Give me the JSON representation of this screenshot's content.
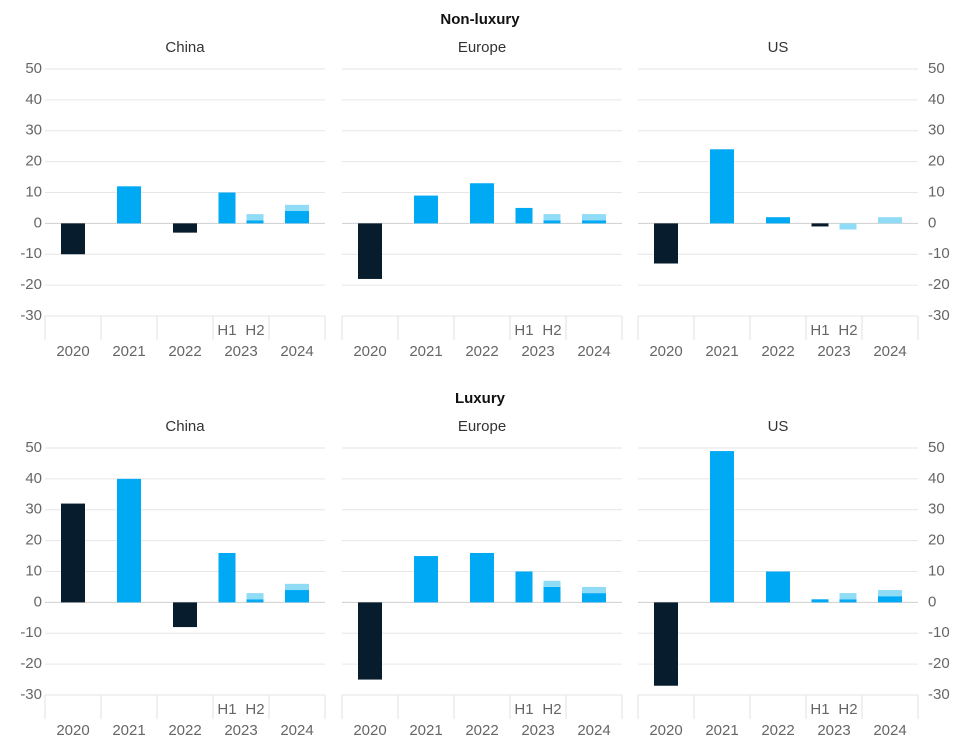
{
  "chart_data": {
    "type": "bar",
    "categories": [
      "2020",
      "2021",
      "2022",
      "H1",
      "H2",
      "2024"
    ],
    "groups": [
      {
        "name": "2023",
        "members": [
          3,
          4
        ]
      }
    ],
    "ylim": [
      -30,
      50
    ],
    "yticks": [
      -30,
      -20,
      -10,
      0,
      10,
      20,
      30,
      40,
      50
    ],
    "grid": true,
    "sections": [
      {
        "title": "Non-luxury",
        "panels": [
          {
            "title": "China",
            "series": [
              {
                "color": "#00a9f4",
                "negative_color": "#071d2d",
                "values": [
                  -10,
                  12,
                  -3,
                  10,
                  1,
                  4
                ]
              },
              {
                "color": "#90dcf7",
                "values": [
                  null,
                  null,
                  null,
                  null,
                  2,
                  2
                ]
              }
            ]
          },
          {
            "title": "Europe",
            "series": [
              {
                "color": "#00a9f4",
                "negative_color": "#071d2d",
                "values": [
                  -18,
                  9,
                  13,
                  5,
                  1,
                  1
                ]
              },
              {
                "color": "#90dcf7",
                "values": [
                  null,
                  null,
                  null,
                  null,
                  2,
                  2
                ]
              }
            ]
          },
          {
            "title": "US",
            "series": [
              {
                "color": "#00a9f4",
                "negative_color": "#071d2d",
                "values": [
                  -13,
                  24,
                  2,
                  -1,
                  null,
                  null
                ]
              },
              {
                "color": "#90dcf7",
                "values": [
                  null,
                  null,
                  null,
                  null,
                  -2,
                  2
                ]
              }
            ]
          }
        ]
      },
      {
        "title": "Luxury",
        "panels": [
          {
            "title": "China",
            "series": [
              {
                "color": "#00a9f4",
                "negative_color": "#071d2d",
                "values": [
                  32,
                  40,
                  -8,
                  16,
                  1,
                  4
                ]
              },
              {
                "color": "#90dcf7",
                "values": [
                  null,
                  null,
                  null,
                  null,
                  2,
                  2
                ]
              }
            ]
          },
          {
            "title": "Europe",
            "series": [
              {
                "color": "#00a9f4",
                "negative_color": "#071d2d",
                "values": [
                  -25,
                  15,
                  16,
                  10,
                  5,
                  3
                ]
              },
              {
                "color": "#90dcf7",
                "values": [
                  null,
                  null,
                  null,
                  null,
                  2,
                  2
                ]
              }
            ]
          },
          {
            "title": "US",
            "series": [
              {
                "color": "#00a9f4",
                "negative_color": "#071d2d",
                "values": [
                  -27,
                  49,
                  10,
                  1,
                  1,
                  2
                ]
              },
              {
                "color": "#90dcf7",
                "values": [
                  null,
                  null,
                  null,
                  null,
                  2,
                  2
                ]
              }
            ]
          }
        ]
      }
    ]
  }
}
